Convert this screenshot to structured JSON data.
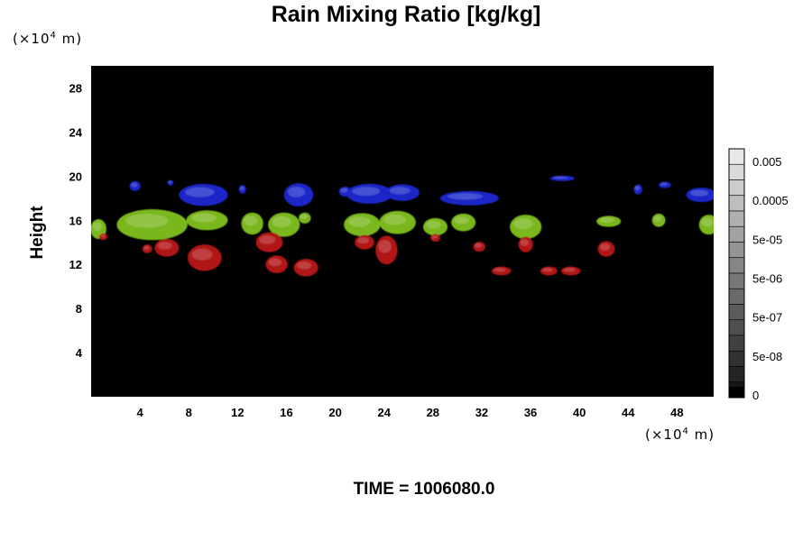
{
  "chart_data": {
    "type": "heatmap",
    "title": "Rain Mixing Ratio [kg/kg]",
    "ylabel": "Height",
    "xlabel": "",
    "x_unit": "(×10",
    "x_unit_exp": "4",
    "x_unit_tail": " m)",
    "y_unit": "(×10",
    "y_unit_exp": "4",
    "y_unit_tail": " m)",
    "xlim": [
      0,
      51
    ],
    "ylim": [
      0,
      30
    ],
    "x_ticks": [
      4,
      8,
      12,
      16,
      20,
      24,
      28,
      32,
      36,
      40,
      44,
      48
    ],
    "y_ticks": [
      4,
      8,
      12,
      16,
      20,
      24,
      28
    ],
    "background_color": "#000000",
    "colorbar": {
      "labels": [
        "0.005",
        "0.0005",
        "5e-05",
        "5e-06",
        "5e-07",
        "5e-08",
        "0"
      ],
      "levels": 16
    },
    "features": [
      {
        "layer": "blue",
        "color": "#1a28c8",
        "blobs": [
          {
            "x": 3.6,
            "y": 19.1,
            "w": 0.9,
            "h": 0.9
          },
          {
            "x": 6.5,
            "y": 19.4,
            "w": 0.5,
            "h": 0.5
          },
          {
            "x": 9.2,
            "y": 18.3,
            "w": 4.0,
            "h": 2.0
          },
          {
            "x": 12.4,
            "y": 18.8,
            "w": 0.6,
            "h": 0.8
          },
          {
            "x": 17.0,
            "y": 18.3,
            "w": 2.4,
            "h": 2.1
          },
          {
            "x": 20.8,
            "y": 18.6,
            "w": 1.0,
            "h": 0.9
          },
          {
            "x": 22.8,
            "y": 18.4,
            "w": 3.8,
            "h": 1.8
          },
          {
            "x": 25.5,
            "y": 18.5,
            "w": 2.8,
            "h": 1.5
          },
          {
            "x": 31.0,
            "y": 18.0,
            "w": 4.8,
            "h": 1.3
          },
          {
            "x": 38.6,
            "y": 19.8,
            "w": 2.0,
            "h": 0.5
          },
          {
            "x": 44.8,
            "y": 18.8,
            "w": 0.7,
            "h": 0.9
          },
          {
            "x": 47.0,
            "y": 19.2,
            "w": 1.0,
            "h": 0.6
          },
          {
            "x": 50.0,
            "y": 18.3,
            "w": 2.5,
            "h": 1.3
          }
        ]
      },
      {
        "layer": "green",
        "color": "#7ab71c",
        "blobs": [
          {
            "x": 0.6,
            "y": 15.2,
            "w": 1.3,
            "h": 1.8
          },
          {
            "x": 5.0,
            "y": 15.6,
            "w": 5.8,
            "h": 2.8
          },
          {
            "x": 9.5,
            "y": 16.0,
            "w": 3.4,
            "h": 1.8
          },
          {
            "x": 13.2,
            "y": 15.7,
            "w": 1.8,
            "h": 2.0
          },
          {
            "x": 15.8,
            "y": 15.6,
            "w": 2.6,
            "h": 2.2
          },
          {
            "x": 17.5,
            "y": 16.2,
            "w": 1.0,
            "h": 1.0
          },
          {
            "x": 22.2,
            "y": 15.6,
            "w": 3.0,
            "h": 2.1
          },
          {
            "x": 25.1,
            "y": 15.8,
            "w": 3.0,
            "h": 2.1
          },
          {
            "x": 28.2,
            "y": 15.4,
            "w": 2.0,
            "h": 1.6
          },
          {
            "x": 30.5,
            "y": 15.8,
            "w": 2.0,
            "h": 1.6
          },
          {
            "x": 35.6,
            "y": 15.4,
            "w": 2.6,
            "h": 2.2
          },
          {
            "x": 42.4,
            "y": 15.9,
            "w": 2.0,
            "h": 1.0
          },
          {
            "x": 46.5,
            "y": 16.0,
            "w": 1.1,
            "h": 1.2
          },
          {
            "x": 50.6,
            "y": 15.6,
            "w": 1.6,
            "h": 1.8
          }
        ]
      },
      {
        "layer": "red",
        "color": "#b01212",
        "blobs": [
          {
            "x": 1.0,
            "y": 14.5,
            "w": 0.7,
            "h": 0.6
          },
          {
            "x": 4.6,
            "y": 13.4,
            "w": 0.8,
            "h": 0.8
          },
          {
            "x": 6.2,
            "y": 13.5,
            "w": 2.0,
            "h": 1.6
          },
          {
            "x": 9.3,
            "y": 12.6,
            "w": 2.8,
            "h": 2.4
          },
          {
            "x": 14.6,
            "y": 14.0,
            "w": 2.2,
            "h": 1.8
          },
          {
            "x": 15.2,
            "y": 12.0,
            "w": 1.8,
            "h": 1.6
          },
          {
            "x": 17.6,
            "y": 11.7,
            "w": 2.0,
            "h": 1.6
          },
          {
            "x": 22.4,
            "y": 14.0,
            "w": 1.6,
            "h": 1.3
          },
          {
            "x": 24.2,
            "y": 13.3,
            "w": 1.8,
            "h": 2.6
          },
          {
            "x": 28.2,
            "y": 14.4,
            "w": 0.8,
            "h": 0.7
          },
          {
            "x": 31.8,
            "y": 13.6,
            "w": 1.0,
            "h": 0.9
          },
          {
            "x": 33.6,
            "y": 11.4,
            "w": 1.6,
            "h": 0.8
          },
          {
            "x": 35.6,
            "y": 13.8,
            "w": 1.2,
            "h": 1.4
          },
          {
            "x": 37.5,
            "y": 11.4,
            "w": 1.4,
            "h": 0.8
          },
          {
            "x": 39.3,
            "y": 11.4,
            "w": 1.6,
            "h": 0.8
          },
          {
            "x": 42.2,
            "y": 13.4,
            "w": 1.4,
            "h": 1.4
          }
        ]
      }
    ],
    "time_label": "TIME = 1006080.0"
  }
}
